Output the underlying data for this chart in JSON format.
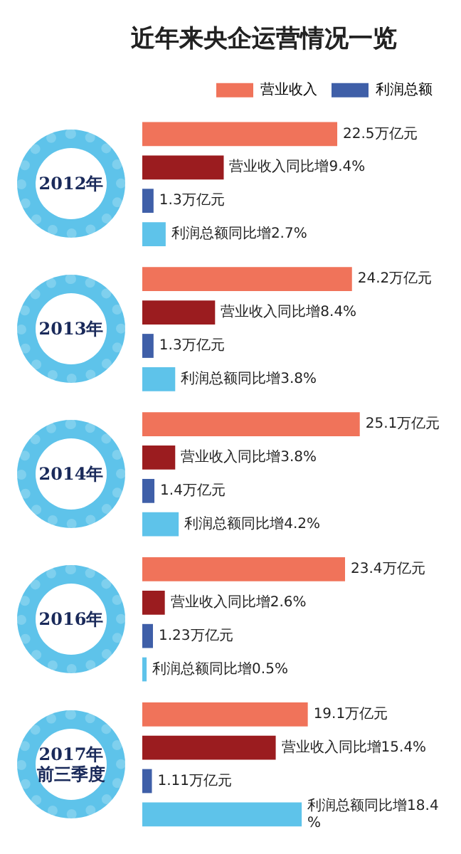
{
  "chart_data": {
    "type": "bar",
    "orientation": "horizontal",
    "title": "近年来央企运营情况一览",
    "categories": [
      "2012年",
      "2013年",
      "2014年",
      "2016年",
      "2017年前三季度"
    ],
    "series": [
      {
        "name": "营业收入",
        "color": "#f0735a",
        "values": [
          22.5,
          24.2,
          25.1,
          23.4,
          19.1
        ],
        "value_labels": [
          "22.5万亿元",
          "24.2万亿元",
          "25.1万亿元",
          "23.4万亿元",
          "19.1万亿元"
        ]
      },
      {
        "color": "#9b1c1f",
        "values": [
          9.4,
          8.4,
          3.8,
          2.6,
          15.4
        ],
        "value_labels": [
          "营业收入同比增9.4%",
          "营业收入同比增8.4%",
          "营业收入同比增3.8%",
          "营业收入同比增2.6%",
          "营业收入同比增15.4%"
        ]
      },
      {
        "name": "利润总额",
        "color": "#3f5fa8",
        "values": [
          1.3,
          1.3,
          1.4,
          1.23,
          1.11
        ],
        "value_labels": [
          "1.3万亿元",
          "1.3万亿元",
          "1.4万亿元",
          "1.23万亿元",
          "1.11万亿元"
        ]
      },
      {
        "color": "#5ec3ea",
        "values": [
          2.7,
          3.8,
          4.2,
          0.5,
          18.4
        ],
        "value_labels": [
          "利润总额同比增2.7%",
          "利润总额同比增3.8%",
          "利润总额同比增4.2%",
          "利润总额同比增0.5%",
          "利润总额同比增18.4%"
        ]
      }
    ],
    "legend": "top right",
    "tick_labels": "y",
    "grid": false
  }
}
